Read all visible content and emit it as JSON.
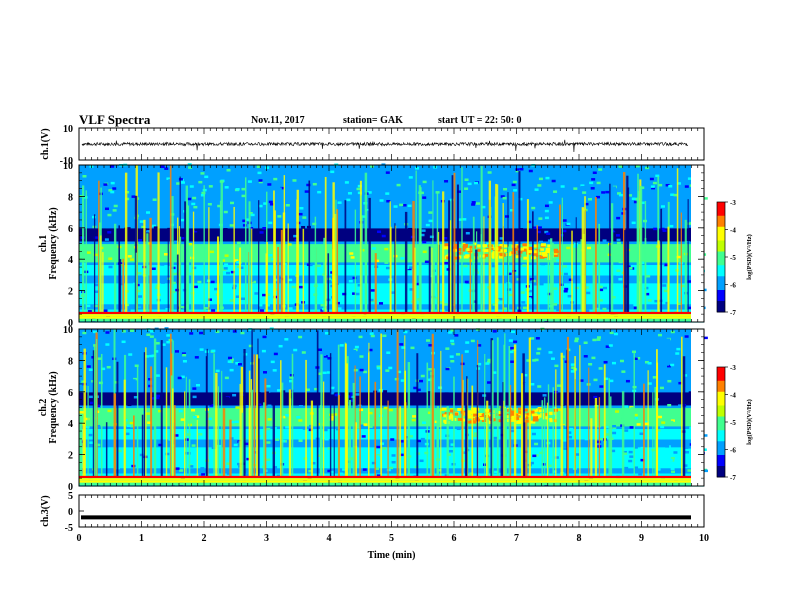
{
  "header": {
    "title": "VLF Spectra",
    "date": "Nov.11, 2017",
    "station": "station= GAK",
    "start_time": "start  UT =   22: 50: 0"
  },
  "colors": {
    "spectrogram_colormap": [
      "#000080",
      "#0000ff",
      "#00a0ff",
      "#00ffff",
      "#40ff90",
      "#c0ff00",
      "#ffff00",
      "#ff8000",
      "#ff0000",
      "#ffffff"
    ],
    "trace": "#000000"
  },
  "chart_data": [
    {
      "type": "line",
      "name": "ch1-waveform",
      "ylabel": "ch.1(V)",
      "ylim": [
        -10,
        10
      ],
      "yticks": [
        "10",
        "-10"
      ],
      "approx_level": 0,
      "approx_noise_amplitude": 2
    },
    {
      "type": "heatmap",
      "name": "ch1-spectrogram",
      "ylabel": "ch.1\nFrequency  (kHz)",
      "ylim": [
        0,
        10
      ],
      "yticks": [
        "0",
        "2",
        "4",
        "6",
        "8",
        "10"
      ],
      "colorbar": {
        "label": "log(PSD)(V²/Hz)",
        "range": [
          -7,
          -3
        ],
        "ticks": [
          "-3",
          "-4",
          "-5",
          "-6",
          "-7"
        ]
      },
      "features": [
        {
          "description": "strong emission band",
          "freq_khz": [
            3.8,
            5.0
          ],
          "log_psd": -4.5
        },
        {
          "description": "dark gap above band",
          "freq_khz": [
            5.2,
            6.0
          ],
          "log_psd": -6.5
        },
        {
          "description": "broadband sferics",
          "freq_khz": [
            0,
            10
          ],
          "log_psd": -4
        }
      ]
    },
    {
      "type": "heatmap",
      "name": "ch2-spectrogram",
      "ylabel": "ch.2\nFrequency  (kHz)",
      "ylim": [
        0,
        10
      ],
      "yticks": [
        "0",
        "2",
        "4",
        "6",
        "8",
        "10"
      ],
      "colorbar": {
        "label": "log(PSD)(V²/Hz)",
        "range": [
          -7,
          -3
        ],
        "ticks": [
          "-3",
          "-4",
          "-5",
          "-6",
          "-7"
        ]
      },
      "features": [
        {
          "description": "strong emission band",
          "freq_khz": [
            3.8,
            5.0
          ],
          "log_psd": -4.6
        },
        {
          "description": "dark gap above band",
          "freq_khz": [
            5.2,
            6.0
          ],
          "log_psd": -6.5
        },
        {
          "description": "broadband sferics",
          "freq_khz": [
            0,
            10
          ],
          "log_psd": -4
        }
      ]
    },
    {
      "type": "line",
      "name": "ch3-waveform",
      "ylabel": "ch.3(V)",
      "ylim": [
        -5,
        5
      ],
      "yticks": [
        "5",
        "0",
        "-5"
      ],
      "approx_level": -2
    }
  ],
  "x_axis": {
    "label": "Time  (min)",
    "range": [
      0,
      10
    ],
    "ticks": [
      "0",
      "1",
      "2",
      "3",
      "4",
      "5",
      "6",
      "7",
      "8",
      "9",
      "10"
    ]
  }
}
